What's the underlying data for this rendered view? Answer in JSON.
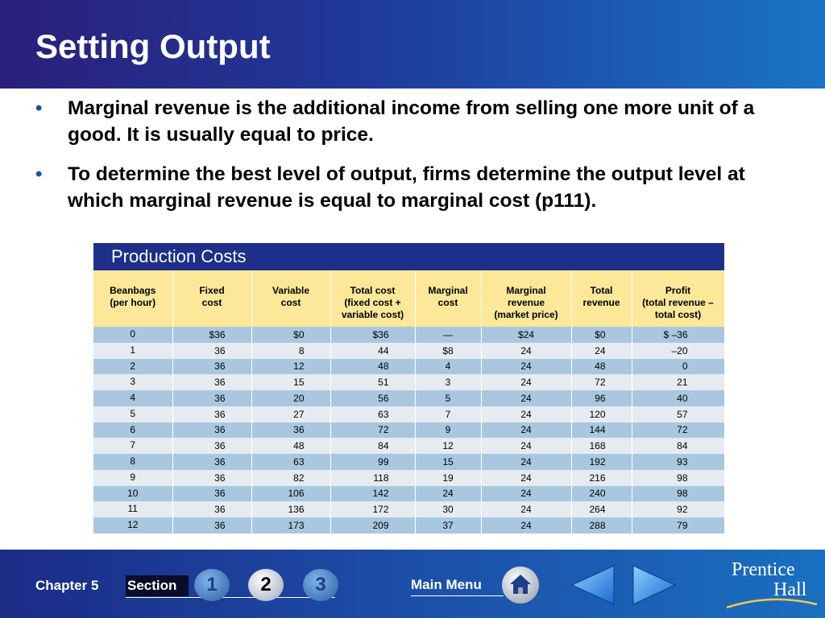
{
  "header": {
    "title": "Setting Output"
  },
  "bullets": [
    "Marginal revenue is the additional income from selling one more unit of a good.  It is usually equal to price.",
    "To determine the best level of output, firms determine the output level at which marginal revenue is equal to marginal cost (p111)."
  ],
  "bullet_glyph": "•",
  "table": {
    "title": "Production Costs",
    "headers": [
      [
        "Beanbags",
        "(per hour)"
      ],
      [
        "Fixed",
        "cost"
      ],
      [
        "Variable",
        "cost"
      ],
      [
        "Total cost",
        "(fixed cost +",
        "variable cost)"
      ],
      [
        "Marginal",
        "cost"
      ],
      [
        "Marginal",
        "revenue",
        "(market price)"
      ],
      [
        "Total",
        "revenue"
      ],
      [
        "Profit",
        "(total revenue –",
        "total cost)"
      ]
    ],
    "rows": [
      [
        "0",
        "$36",
        "$0",
        "$36",
        "—",
        "$24",
        "$0",
        "$ –36"
      ],
      [
        "1",
        "36",
        "8",
        "44",
        "$8",
        "24",
        "24",
        "–20"
      ],
      [
        "2",
        "36",
        "12",
        "48",
        "4",
        "24",
        "48",
        "0"
      ],
      [
        "3",
        "36",
        "15",
        "51",
        "3",
        "24",
        "72",
        "21"
      ],
      [
        "4",
        "36",
        "20",
        "56",
        "5",
        "24",
        "96",
        "40"
      ],
      [
        "5",
        "36",
        "27",
        "63",
        "7",
        "24",
        "120",
        "57"
      ],
      [
        "6",
        "36",
        "36",
        "72",
        "9",
        "24",
        "144",
        "72"
      ],
      [
        "7",
        "36",
        "48",
        "84",
        "12",
        "24",
        "168",
        "84"
      ],
      [
        "8",
        "36",
        "63",
        "99",
        "15",
        "24",
        "192",
        "93"
      ],
      [
        "9",
        "36",
        "82",
        "118",
        "19",
        "24",
        "216",
        "98"
      ],
      [
        "10",
        "36",
        "106",
        "142",
        "24",
        "24",
        "240",
        "98"
      ],
      [
        "11",
        "36",
        "136",
        "172",
        "30",
        "24",
        "264",
        "92"
      ],
      [
        "12",
        "36",
        "173",
        "209",
        "37",
        "24",
        "288",
        "79"
      ]
    ]
  },
  "footer": {
    "chapter": "Chapter 5",
    "section_label": "Section",
    "section_buttons": [
      "1",
      "2",
      "3"
    ],
    "active_section": "2",
    "main_menu": "Main Menu",
    "home_icon": "home-icon",
    "prev_icon": "arrow-left-icon",
    "next_icon": "arrow-right-icon",
    "logo_line1": "Prentice",
    "logo_line2": "Hall"
  },
  "colors": {
    "header_start": "#2a1f7a",
    "header_end": "#1a74c6",
    "table_title": "#1e2f8a",
    "table_header": "#fde89a",
    "row_odd": "#a9c8e0",
    "row_even": "#e6ebf2",
    "bullet": "#1a4fb0"
  }
}
